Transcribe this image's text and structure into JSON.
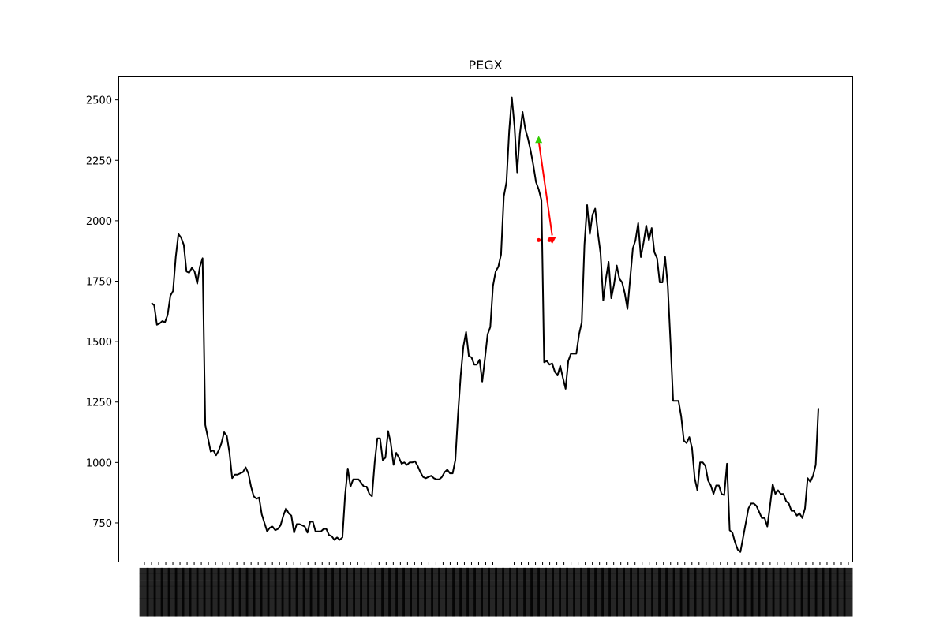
{
  "chart_data": {
    "type": "line",
    "title": "PEGX",
    "xlabel": "",
    "ylabel": "",
    "ylim": [
      590,
      2600
    ],
    "yticks": [
      750,
      1000,
      1250,
      1500,
      1750,
      2000,
      2250,
      2500
    ],
    "ytick_labels": [
      "750",
      "1000",
      "1250",
      "1500",
      "1750",
      "2000",
      "2250",
      "2500"
    ],
    "grid": false,
    "x_tick_labels_note": "dense rotated date tick labels (illegible)",
    "series": [
      {
        "color": "#000000",
        "values": [
          1660,
          1650,
          1570,
          1575,
          1585,
          1580,
          1610,
          1690,
          1710,
          1850,
          1945,
          1930,
          1900,
          1790,
          1785,
          1805,
          1790,
          1740,
          1810,
          1845,
          1155,
          1100,
          1045,
          1050,
          1030,
          1050,
          1080,
          1125,
          1110,
          1040,
          935,
          950,
          950,
          955,
          960,
          980,
          955,
          900,
          860,
          850,
          855,
          785,
          750,
          715,
          730,
          735,
          720,
          725,
          740,
          780,
          810,
          790,
          780,
          710,
          745,
          745,
          740,
          735,
          710,
          755,
          755,
          715,
          715,
          715,
          725,
          725,
          700,
          695,
          680,
          690,
          680,
          690,
          865,
          975,
          900,
          930,
          930,
          930,
          915,
          900,
          900,
          870,
          860,
          1000,
          1100,
          1100,
          1010,
          1020,
          1130,
          1080,
          990,
          1040,
          1020,
          995,
          1000,
          990,
          1000,
          1000,
          1005,
          985,
          960,
          940,
          935,
          940,
          945,
          935,
          930,
          930,
          940,
          960,
          970,
          955,
          955,
          1010,
          1200,
          1360,
          1480,
          1540,
          1440,
          1435,
          1405,
          1405,
          1425,
          1335,
          1430,
          1530,
          1560,
          1730,
          1790,
          1810,
          1860,
          2100,
          2160,
          2370,
          2510,
          2390,
          2200,
          2360,
          2450,
          2380,
          2340,
          2290,
          2230,
          2160,
          2130,
          2085,
          1415,
          1420,
          1405,
          1410,
          1375,
          1360,
          1400,
          1350,
          1305,
          1420,
          1450,
          1450,
          1450,
          1530,
          1580,
          1900,
          2065,
          1945,
          2025,
          2050,
          1950,
          1865,
          1670,
          1760,
          1830,
          1680,
          1735,
          1815,
          1760,
          1745,
          1700,
          1635,
          1760,
          1885,
          1920,
          1990,
          1850,
          1910,
          1980,
          1920,
          1970,
          1870,
          1845,
          1745,
          1745,
          1850,
          1730,
          1500,
          1255,
          1255,
          1255,
          1190,
          1090,
          1080,
          1105,
          1060,
          935,
          885,
          1000,
          1000,
          985,
          925,
          905,
          870,
          905,
          905,
          870,
          865,
          995,
          720,
          710,
          670,
          640,
          630,
          690,
          750,
          810,
          830,
          830,
          820,
          795,
          770,
          770,
          735,
          820,
          910,
          870,
          885,
          870,
          870,
          840,
          830,
          800,
          800,
          780,
          790,
          770,
          810,
          935,
          920,
          945,
          990,
          1225
        ]
      }
    ],
    "markers": [
      {
        "type": "buy",
        "color": "#33cc00",
        "x_index": 144,
        "y": 2335
      },
      {
        "type": "sell",
        "color": "#ff0000",
        "x_index": 149,
        "y": 1920
      },
      {
        "type": "point",
        "color": "#ff0000",
        "x_index": 144,
        "y": 1920
      },
      {
        "type": "point",
        "color": "#ff0000",
        "x_index": 148,
        "y": 1920
      }
    ],
    "arrow": {
      "color": "#ff0000",
      "from_index": 144,
      "from_y": 2330,
      "to_index": 149,
      "to_y": 1920
    }
  }
}
